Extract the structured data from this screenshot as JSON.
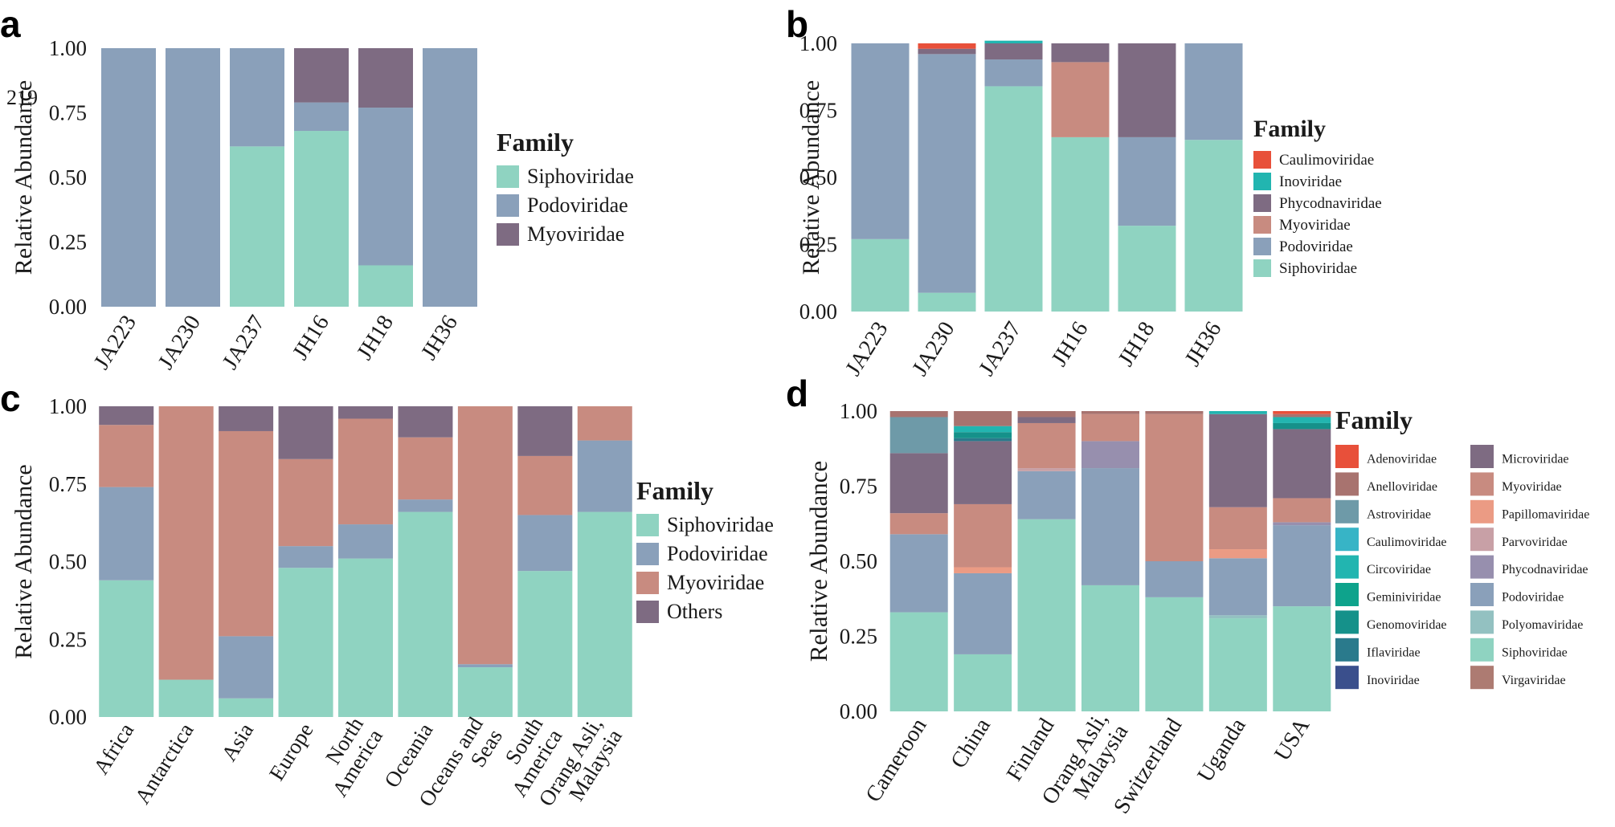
{
  "chart_data": [
    {
      "panel": "a",
      "type": "bar",
      "stacked": true,
      "ylabel": "Relative Abundance",
      "ylim": [
        0,
        1
      ],
      "yticks": [
        "0.00",
        "0.25",
        "0.50",
        "0.75",
        "1.00"
      ],
      "stray_text": "219",
      "categories": [
        "JA223",
        "JA230",
        "JA237",
        "JH16",
        "JH18",
        "JH36"
      ],
      "series": [
        {
          "name": "Siphoviridae",
          "color": "#8fd3c1",
          "values": [
            0,
            0,
            0.62,
            0.68,
            0.16,
            0
          ]
        },
        {
          "name": "Podoviridae",
          "color": "#8aa0ba",
          "values": [
            1.0,
            1.0,
            0.38,
            0.11,
            0.61,
            1.0
          ]
        },
        {
          "name": "Myoviridae",
          "color": "#7e6b82",
          "values": [
            0,
            0,
            0,
            0.21,
            0.23,
            0
          ]
        }
      ],
      "legend": {
        "title": "Family",
        "items": [
          "Siphoviridae",
          "Podoviridae",
          "Myoviridae"
        ],
        "placement": "right"
      }
    },
    {
      "panel": "b",
      "type": "bar",
      "stacked": true,
      "ylabel": "Relative Abundance",
      "ylim": [
        0,
        1
      ],
      "yticks": [
        "0.00",
        "0.25",
        "0.50",
        "0.75",
        "1.00"
      ],
      "categories": [
        "JA223",
        "JA230",
        "JA237",
        "JH16",
        "JH18",
        "JH36"
      ],
      "series": [
        {
          "name": "Siphoviridae",
          "color": "#8fd3c1",
          "values": [
            0.27,
            0.07,
            0.84,
            0.65,
            0.32,
            0.64
          ]
        },
        {
          "name": "Podoviridae",
          "color": "#8aa0ba",
          "values": [
            0.73,
            0.89,
            0.1,
            0,
            0.33,
            0.36
          ]
        },
        {
          "name": "Myoviridae",
          "color": "#c88b80",
          "values": [
            0,
            0,
            0,
            0.28,
            0,
            0
          ]
        },
        {
          "name": "Phycodnaviridae",
          "color": "#7e6b82",
          "values": [
            0,
            0.02,
            0.06,
            0.07,
            0.35,
            0
          ]
        },
        {
          "name": "Inoviridae",
          "color": "#22b5b0",
          "values": [
            0,
            0,
            0.01,
            0,
            0,
            0
          ]
        },
        {
          "name": "Caulimoviridae",
          "color": "#e8503a",
          "values": [
            0,
            0.02,
            0,
            0,
            0,
            0
          ]
        }
      ],
      "legend": {
        "title": "Family",
        "items": [
          "Caulimoviridae",
          "Inoviridae",
          "Phycodnaviridae",
          "Myoviridae",
          "Podoviridae",
          "Siphoviridae"
        ],
        "placement": "right"
      }
    },
    {
      "panel": "c",
      "type": "bar",
      "stacked": true,
      "ylabel": "Relative Abundance",
      "ylim": [
        0,
        1
      ],
      "yticks": [
        "0.00",
        "0.25",
        "0.50",
        "0.75",
        "1.00"
      ],
      "categories": [
        "Africa",
        "Antarctica",
        "Asia",
        "Europe",
        "North America",
        "Oceania",
        "Oceans and Seas",
        "South America",
        "Orang Asli, Malaysia"
      ],
      "series": [
        {
          "name": "Siphoviridae",
          "color": "#8fd3c1",
          "values": [
            0.44,
            0.12,
            0.06,
            0.48,
            0.51,
            0.66,
            0.16,
            0.47,
            0.66
          ]
        },
        {
          "name": "Podoviridae",
          "color": "#8aa0ba",
          "values": [
            0.3,
            0,
            0.2,
            0.07,
            0.11,
            0.04,
            0.01,
            0.18,
            0.23
          ]
        },
        {
          "name": "Myoviridae",
          "color": "#c88b80",
          "values": [
            0.2,
            0.88,
            0.66,
            0.28,
            0.34,
            0.2,
            0.83,
            0.19,
            0.11
          ]
        },
        {
          "name": "Others",
          "color": "#7e6b82",
          "values": [
            0.06,
            0,
            0.08,
            0.17,
            0.04,
            0.1,
            0,
            0.16,
            0
          ]
        }
      ],
      "legend": {
        "title": "Family",
        "items": [
          "Siphoviridae",
          "Podoviridae",
          "Myoviridae",
          "Others"
        ],
        "placement": "right"
      }
    },
    {
      "panel": "d",
      "type": "bar",
      "stacked": true,
      "ylabel": "Relative Abundance",
      "ylim": [
        0,
        1
      ],
      "yticks": [
        "0.00",
        "0.25",
        "0.50",
        "0.75",
        "1.00"
      ],
      "categories": [
        "Cameroon",
        "China",
        "Finland",
        "Orang Asli, Malaysia",
        "Switzerland",
        "Uganda",
        "USA"
      ],
      "series": [
        {
          "name": "Siphoviridae",
          "color": "#8fd3c1",
          "values": [
            0.33,
            0.19,
            0.64,
            0.42,
            0.38,
            0.31,
            0.35
          ]
        },
        {
          "name": "Polyomaviridae",
          "color": "#93c1c1",
          "values": [
            0,
            0,
            0,
            0,
            0,
            0.01,
            0
          ]
        },
        {
          "name": "Podoviridae",
          "color": "#8aa0ba",
          "values": [
            0.26,
            0.27,
            0.16,
            0.39,
            0.12,
            0.19,
            0.27
          ]
        },
        {
          "name": "Phycodnaviridae",
          "color": "#978fae",
          "values": [
            0,
            0,
            0,
            0.09,
            0,
            0,
            0.01
          ]
        },
        {
          "name": "Parvoviridae",
          "color": "#c8a0a6",
          "values": [
            0,
            0,
            0.01,
            0,
            0,
            0,
            0
          ]
        },
        {
          "name": "Papillomaviridae",
          "color": "#eb9b84",
          "values": [
            0,
            0.02,
            0,
            0,
            0,
            0.03,
            0
          ]
        },
        {
          "name": "Myoviridae",
          "color": "#c88b80",
          "values": [
            0.07,
            0.21,
            0.15,
            0.09,
            0.49,
            0.14,
            0.08
          ]
        },
        {
          "name": "Microviridae",
          "color": "#7e6b82",
          "values": [
            0.2,
            0.21,
            0.02,
            0,
            0,
            0.31,
            0.23
          ]
        },
        {
          "name": "Iflaviridae",
          "color": "#2a7a8c",
          "values": [
            0,
            0.01,
            0,
            0,
            0,
            0,
            0
          ]
        },
        {
          "name": "Genomoviridae",
          "color": "#15918a",
          "values": [
            0,
            0.02,
            0,
            0,
            0,
            0,
            0.02
          ]
        },
        {
          "name": "Circoviridae",
          "color": "#22b5b0",
          "values": [
            0,
            0.02,
            0,
            0,
            0,
            0.01,
            0.02
          ]
        },
        {
          "name": "Astroviridae",
          "color": "#6e9aa8",
          "values": [
            0.12,
            0,
            0,
            0,
            0,
            0,
            0
          ]
        },
        {
          "name": "Anelloviridae",
          "color": "#a8736f",
          "values": [
            0.02,
            0.05,
            0.02,
            0.01,
            0.01,
            0,
            0.01
          ]
        },
        {
          "name": "Adenoviridae",
          "color": "#e8503a",
          "values": [
            0,
            0,
            0,
            0,
            0,
            0,
            0.01
          ]
        }
      ],
      "legend": {
        "title": "Family",
        "items": [
          "Adenoviridae",
          "Anelloviridae",
          "Astroviridae",
          "Caulimoviridae",
          "Circoviridae",
          "Geminiviridae",
          "Genomoviridae",
          "Iflaviridae",
          "Inoviridae",
          "Microviridae",
          "Myoviridae",
          "Papillomaviridae",
          "Parvoviridae",
          "Phycodnaviridae",
          "Podoviridae",
          "Polyomaviridae",
          "Siphoviridae",
          "Virgaviridae"
        ],
        "colors": [
          "#e8503a",
          "#a8736f",
          "#6e9aa8",
          "#37b4c6",
          "#22b5b0",
          "#0ea38c",
          "#15918a",
          "#2a7a8c",
          "#3a4f8c",
          "#7e6b82",
          "#c88b80",
          "#eb9b84",
          "#c8a0a6",
          "#978fae",
          "#8aa0ba",
          "#93c1c1",
          "#8fd3c1",
          "#ad7b72"
        ],
        "placement": "right"
      }
    }
  ]
}
